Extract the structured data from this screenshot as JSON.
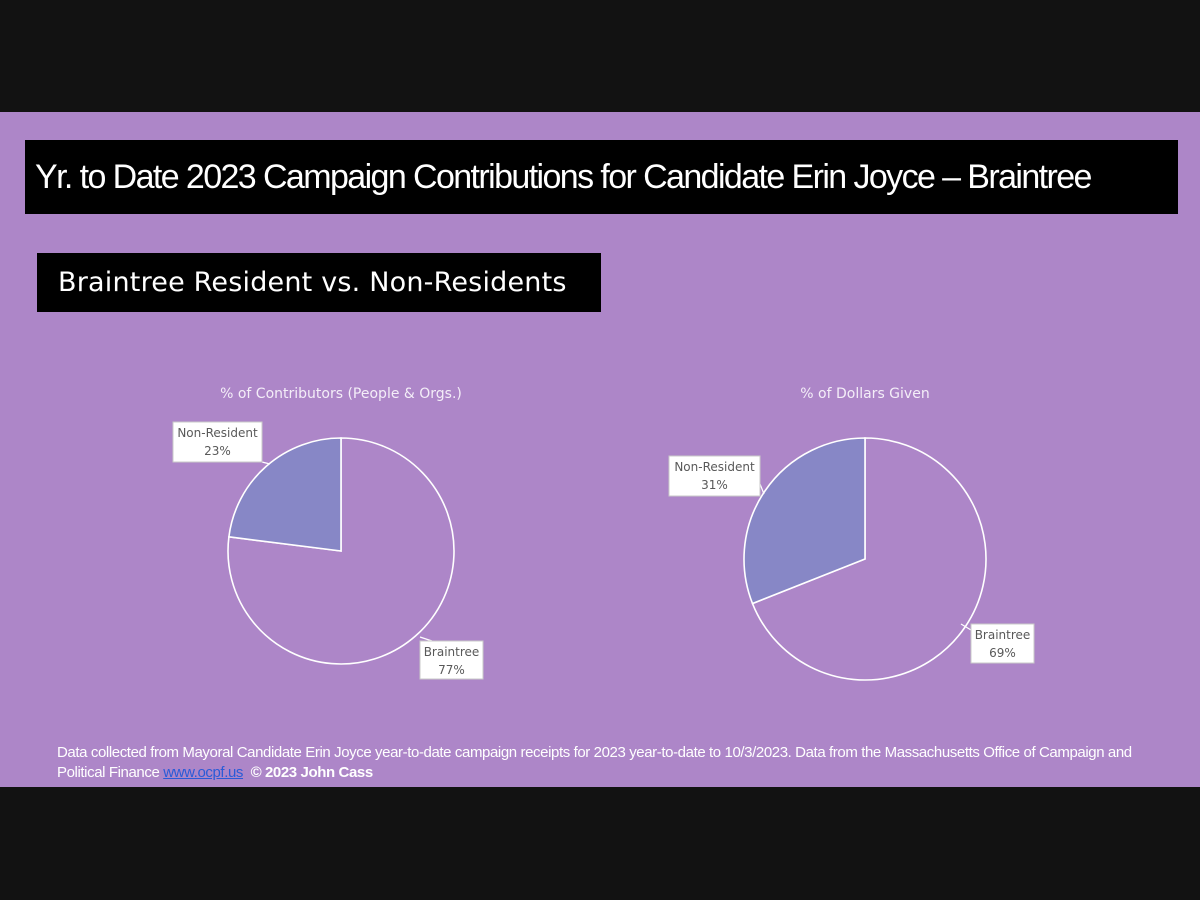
{
  "slide": {
    "title": "Yr. to Date 2023 Campaign Contributions for Candidate Erin Joyce – Braintree",
    "subtitle": "Braintree Resident vs. Non-Residents"
  },
  "chart_data": [
    {
      "type": "pie",
      "title": "% of Contributors (People & Orgs.)",
      "categories": [
        "Braintree",
        "Non-Resident"
      ],
      "values": [
        77,
        23
      ],
      "labels": [
        "77%",
        "23%"
      ],
      "colors": [
        "#ad86c8",
        "#8787c6"
      ]
    },
    {
      "type": "pie",
      "title": "% of Dollars Given",
      "categories": [
        "Braintree",
        "Non-Resident"
      ],
      "values": [
        69,
        31
      ],
      "labels": [
        "69%",
        "31%"
      ],
      "colors": [
        "#ad86c8",
        "#8787c6"
      ]
    }
  ],
  "footer": {
    "text": "Data collected from Mayoral Candidate Erin Joyce year-to-date campaign receipts for 2023 year-to-date to 10/3/2023. Data from the Massachusetts Office of Campaign and Political Finance",
    "link": "www.ocpf.us",
    "copyright": "© 2023 John Cass"
  }
}
